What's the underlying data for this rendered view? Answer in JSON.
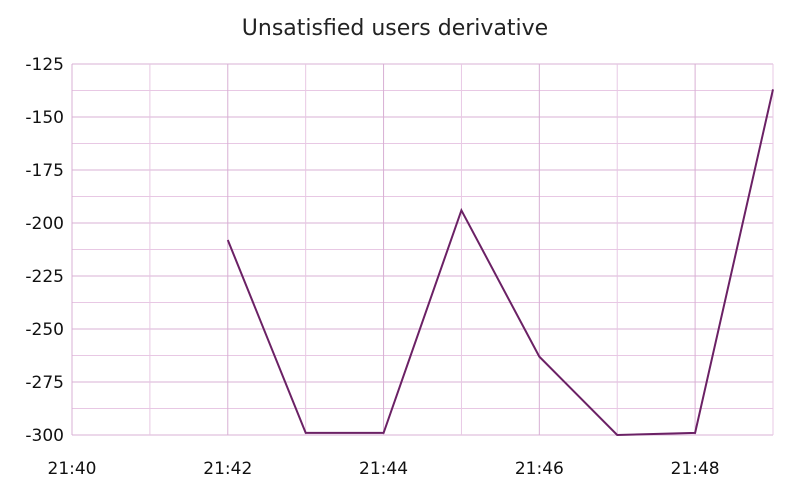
{
  "chart_data": {
    "type": "line",
    "title": "Unsatisfied users derivative",
    "xlabel": "",
    "ylabel": "",
    "x_tick_labels": [
      "21:40",
      "21:42",
      "21:44",
      "21:46",
      "21:48"
    ],
    "y_tick_labels": [
      "-125",
      "-150",
      "-175",
      "-200",
      "-225",
      "-250",
      "-275",
      "-300"
    ],
    "ylim": [
      -300,
      -125
    ],
    "xlim": [
      "21:40",
      "21:49"
    ],
    "grid": true,
    "series": [
      {
        "x": [
          "21:42",
          "21:43",
          "21:44",
          "21:45",
          "21:46",
          "21:47",
          "21:48",
          "21:49"
        ],
        "values": [
          -208,
          -299,
          -299,
          -194,
          -263,
          -300,
          -299,
          -137
        ]
      }
    ],
    "colors": {
      "line": "#6b2165",
      "grid": "#e8c8e4",
      "grid_major": "#d8b0d4"
    }
  }
}
